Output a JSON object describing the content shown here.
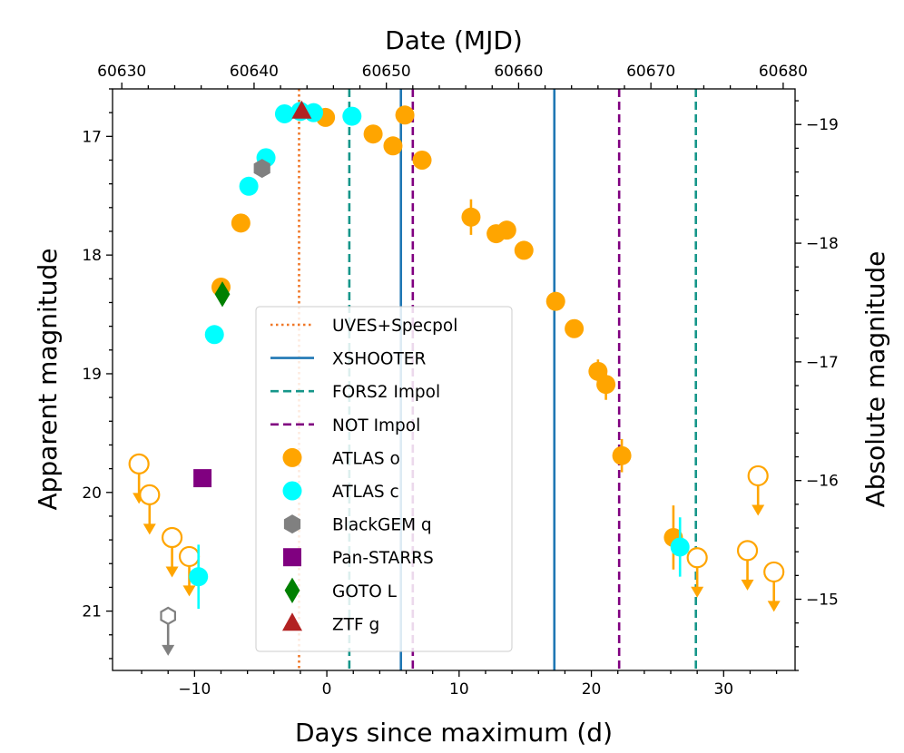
{
  "chart_data": {
    "type": "scatter",
    "title": "",
    "xlabel": "Days since maximum (d)",
    "ylabel": "Apparent magnitude",
    "x2label": "Date (MJD)",
    "y2label": "Absolute magnitude",
    "xlim": [
      -16.2,
      35.4
    ],
    "ylim": [
      21.5,
      16.6
    ],
    "y_inverted": true,
    "xticks": [
      -10,
      0,
      10,
      20,
      30
    ],
    "yticks": [
      17,
      18,
      19,
      20,
      21
    ],
    "mjd_ticks": [
      60630,
      60640,
      60650,
      60660,
      60670,
      60680
    ],
    "mjd_offset": 60645.5,
    "abs_mag_ticks": [
      -19,
      -18,
      -17,
      -16,
      -15
    ],
    "distance_modulus": 35.9,
    "grid": false,
    "legend_position": "center",
    "vertical_lines": [
      {
        "name": "UVES+Specpol",
        "style": "dotted",
        "color": "#f07828",
        "x": [
          -2.1
        ]
      },
      {
        "name": "XSHOOTER",
        "style": "solid",
        "color": "#1f77b4",
        "x": [
          5.6,
          17.2
        ]
      },
      {
        "name": "FORS2 Impol",
        "style": "dashed",
        "color": "#16968a",
        "x": [
          1.7,
          27.9
        ]
      },
      {
        "name": "NOT Impol",
        "style": "dashed",
        "color": "#800080",
        "x": [
          6.5,
          22.1
        ]
      }
    ],
    "series": [
      {
        "name": "ATLAS o",
        "marker": "circle",
        "color": "#ffa500",
        "points": [
          {
            "x": -6.5,
            "y": 17.73
          },
          {
            "x": -8.0,
            "y": 18.27
          },
          {
            "x": -0.1,
            "y": 16.84
          },
          {
            "x": 3.5,
            "y": 16.98
          },
          {
            "x": 5.0,
            "y": 17.08
          },
          {
            "x": 5.9,
            "y": 16.82
          },
          {
            "x": 7.2,
            "y": 17.2
          },
          {
            "x": 10.9,
            "y": 17.68,
            "err": 0.15
          },
          {
            "x": 12.8,
            "y": 17.82
          },
          {
            "x": 13.6,
            "y": 17.79
          },
          {
            "x": 14.9,
            "y": 17.96
          },
          {
            "x": 17.3,
            "y": 18.39
          },
          {
            "x": 18.7,
            "y": 18.62
          },
          {
            "x": 20.5,
            "y": 18.98,
            "err": 0.1
          },
          {
            "x": 21.1,
            "y": 19.09,
            "err": 0.13
          },
          {
            "x": 22.3,
            "y": 19.69,
            "err": 0.14
          },
          {
            "x": 26.2,
            "y": 20.38,
            "err": 0.27
          }
        ],
        "upper_limits": [
          {
            "x": -14.2,
            "y": 19.76
          },
          {
            "x": -13.4,
            "y": 20.02
          },
          {
            "x": -11.7,
            "y": 20.38
          },
          {
            "x": -10.4,
            "y": 20.54
          },
          {
            "x": 28.0,
            "y": 20.55
          },
          {
            "x": 31.8,
            "y": 20.49
          },
          {
            "x": 32.6,
            "y": 19.86
          },
          {
            "x": 33.8,
            "y": 20.67
          }
        ]
      },
      {
        "name": "ATLAS c",
        "marker": "circle",
        "color": "#00ffff",
        "points": [
          {
            "x": -8.5,
            "y": 18.67
          },
          {
            "x": -5.9,
            "y": 17.42
          },
          {
            "x": -4.6,
            "y": 17.18
          },
          {
            "x": -3.2,
            "y": 16.81
          },
          {
            "x": -2.0,
            "y": 16.79
          },
          {
            "x": -1.0,
            "y": 16.8
          },
          {
            "x": 1.9,
            "y": 16.83
          },
          {
            "x": -9.7,
            "y": 20.71,
            "err": 0.27
          },
          {
            "x": 26.7,
            "y": 20.46,
            "err": 0.25
          }
        ],
        "upper_limits": []
      },
      {
        "name": "BlackGEM q",
        "marker": "hexagon",
        "color": "#808080",
        "points": [
          {
            "x": -4.9,
            "y": 17.27
          }
        ],
        "upper_limits": [
          {
            "x": -12.0,
            "y": 21.04
          }
        ]
      },
      {
        "name": "Pan-STARRS",
        "marker": "square",
        "color": "#800080",
        "points": [
          {
            "x": -9.4,
            "y": 19.88
          }
        ],
        "upper_limits": []
      },
      {
        "name": "GOTO L",
        "marker": "diamond",
        "color": "#008000",
        "points": [
          {
            "x": -7.9,
            "y": 18.33
          }
        ],
        "upper_limits": []
      },
      {
        "name": "ZTF g",
        "marker": "triangle",
        "color": "#b22222",
        "points": [
          {
            "x": -1.9,
            "y": 16.79
          }
        ],
        "upper_limits": []
      }
    ]
  }
}
